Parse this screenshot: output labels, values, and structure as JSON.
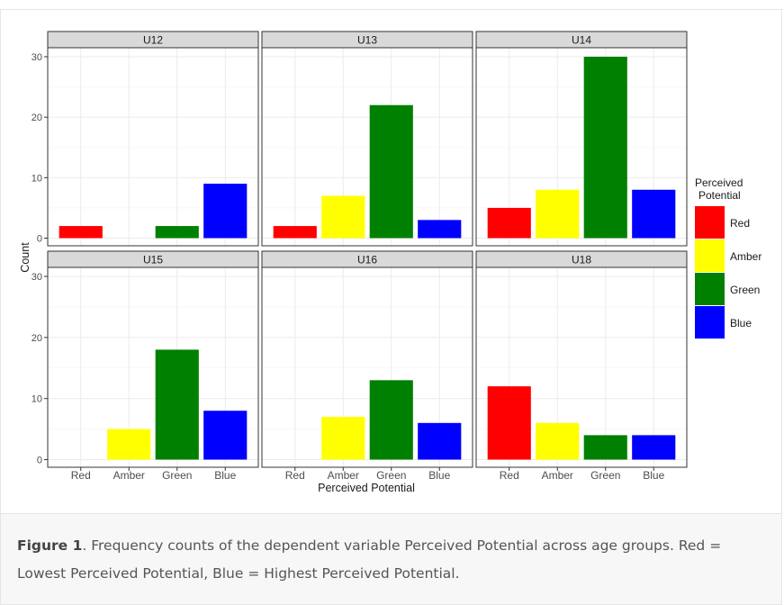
{
  "chart_data": {
    "type": "bar",
    "facet_layout": "2 rows x 3 columns, shared axes",
    "xlabel": "Perceived Potential",
    "ylabel": "Count",
    "categories": [
      "Red",
      "Amber",
      "Green",
      "Blue"
    ],
    "ylim": [
      0,
      30
    ],
    "yticks": [
      0,
      10,
      20,
      30
    ],
    "grid": true,
    "colors": {
      "Red": "#ff0000",
      "Amber": "#ffff00",
      "Green": "#008000",
      "Blue": "#0000ff"
    },
    "legend": {
      "title_line1": "Perceived",
      "title_line2": "Potential",
      "placement": "right",
      "items": [
        "Red",
        "Amber",
        "Green",
        "Blue"
      ]
    },
    "facets": [
      {
        "name": "U12",
        "values": [
          2,
          0,
          2,
          9
        ]
      },
      {
        "name": "U13",
        "values": [
          2,
          7,
          22,
          3
        ]
      },
      {
        "name": "U14",
        "values": [
          5,
          8,
          30,
          8
        ]
      },
      {
        "name": "U15",
        "values": [
          0,
          5,
          18,
          8
        ]
      },
      {
        "name": "U16",
        "values": [
          0,
          7,
          13,
          6
        ]
      },
      {
        "name": "U18",
        "values": [
          12,
          6,
          4,
          4
        ]
      }
    ]
  },
  "caption": {
    "label": "Figure 1",
    "text": ". Frequency counts of the dependent variable Perceived Potential across age groups. Red = Lowest Perceived Potential, Blue = Highest Perceived Potential."
  }
}
